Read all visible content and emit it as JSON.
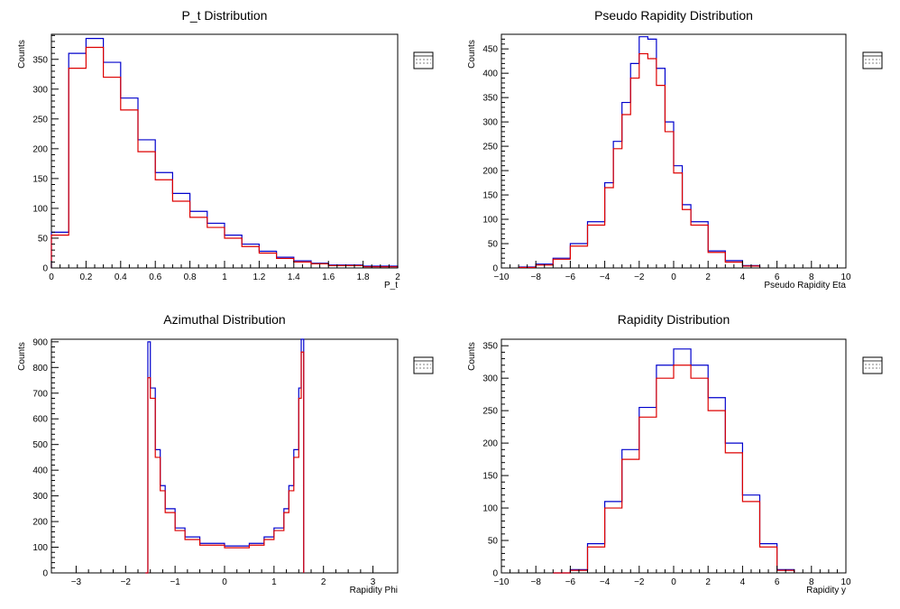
{
  "colors": {
    "series_blue": "#0000cc",
    "series_red": "#dd0000",
    "axis": "#000000",
    "background": "#ffffff"
  },
  "chart_data": [
    {
      "type": "histogram",
      "title": "P_t Distribution",
      "xlabel": "P_t",
      "ylabel": "Counts",
      "xlim": [
        0,
        2
      ],
      "ylim": [
        0,
        392
      ],
      "xticks": [
        0,
        0.2,
        0.4,
        0.6,
        0.8,
        1,
        1.2,
        1.4,
        1.6,
        1.8,
        2
      ],
      "xtick_labels": [
        "0",
        "0.2",
        "0.4",
        "0.6",
        "0.8",
        "1",
        "1.2",
        "1.4",
        "1.6",
        "1.8",
        "2"
      ],
      "yticks": [
        0,
        50,
        100,
        150,
        200,
        250,
        300,
        350
      ],
      "ytick_labels": [
        "0",
        "50",
        "100",
        "150",
        "200",
        "250",
        "300",
        "350"
      ],
      "grid": false,
      "stats_box": "right",
      "series": [
        {
          "color": "blue",
          "x": [
            0.0,
            0.1,
            0.2,
            0.3,
            0.4,
            0.5,
            0.6,
            0.7,
            0.8,
            0.9,
            1.0,
            1.1,
            1.2,
            1.3,
            1.4,
            1.5,
            1.6,
            1.8,
            2.0
          ],
          "y": [
            60,
            360,
            385,
            345,
            285,
            215,
            160,
            125,
            95,
            75,
            55,
            40,
            28,
            18,
            12,
            8,
            5,
            3,
            2
          ]
        },
        {
          "color": "red",
          "x": [
            0.0,
            0.1,
            0.2,
            0.3,
            0.4,
            0.5,
            0.6,
            0.7,
            0.8,
            0.9,
            1.0,
            1.1,
            1.2,
            1.3,
            1.4,
            1.5,
            1.6,
            1.8,
            2.0
          ],
          "y": [
            55,
            335,
            370,
            320,
            265,
            195,
            148,
            112,
            85,
            68,
            50,
            36,
            25,
            16,
            10,
            7,
            4,
            2,
            1
          ]
        }
      ]
    },
    {
      "type": "histogram",
      "title": "Pseudo Rapidity Distribution",
      "xlabel": "Pseudo Rapidity Eta",
      "ylabel": "Counts",
      "xlim": [
        -10,
        10
      ],
      "ylim": [
        0,
        480
      ],
      "xticks": [
        -10,
        -8,
        -6,
        -4,
        -2,
        0,
        2,
        4,
        6,
        8,
        10
      ],
      "xtick_labels": [
        "−10",
        "−8",
        "−6",
        "−4",
        "−2",
        "0",
        "2",
        "4",
        "6",
        "8",
        "10"
      ],
      "yticks": [
        0,
        50,
        100,
        150,
        200,
        250,
        300,
        350,
        400,
        450
      ],
      "ytick_labels": [
        "0",
        "50",
        "100",
        "150",
        "200",
        "250",
        "300",
        "350",
        "400",
        "450"
      ],
      "grid": false,
      "stats_box": "right",
      "series": [
        {
          "color": "blue",
          "x": [
            -9,
            -8,
            -7,
            -6,
            -5,
            -4,
            -3.5,
            -3,
            -2.5,
            -2,
            -1.5,
            -1,
            -0.5,
            0,
            0.5,
            1,
            2,
            3,
            4,
            5
          ],
          "y": [
            2,
            8,
            20,
            50,
            95,
            175,
            260,
            340,
            420,
            475,
            470,
            410,
            300,
            210,
            130,
            95,
            35,
            15,
            5,
            1
          ]
        },
        {
          "color": "red",
          "x": [
            -9,
            -8,
            -7,
            -6,
            -5,
            -4,
            -3.5,
            -3,
            -2.5,
            -2,
            -1.5,
            -1,
            -0.5,
            0,
            0.5,
            1,
            2,
            3,
            4,
            5
          ],
          "y": [
            1,
            6,
            18,
            45,
            88,
            165,
            245,
            315,
            390,
            440,
            430,
            375,
            280,
            195,
            120,
            88,
            32,
            12,
            4,
            1
          ]
        }
      ]
    },
    {
      "type": "histogram",
      "title": "Azimuthal Distribution",
      "xlabel": "Rapidity Phi",
      "ylabel": "Counts",
      "xlim": [
        -3.5,
        3.5
      ],
      "ylim": [
        0,
        910
      ],
      "xticks": [
        -3,
        -2,
        -1,
        0,
        1,
        2,
        3
      ],
      "xtick_labels": [
        "−3",
        "−2",
        "−1",
        "0",
        "1",
        "2",
        "3"
      ],
      "yticks": [
        0,
        100,
        200,
        300,
        400,
        500,
        600,
        700,
        800,
        900
      ],
      "ytick_labels": [
        "0",
        "100",
        "200",
        "300",
        "400",
        "500",
        "600",
        "700",
        "800",
        "900"
      ],
      "grid": false,
      "stats_box": "right",
      "series": [
        {
          "color": "blue",
          "x": [
            -1.6,
            -1.55,
            -1.5,
            -1.4,
            -1.3,
            -1.2,
            -1.0,
            -0.8,
            -0.5,
            0,
            0.5,
            0.8,
            1.0,
            1.2,
            1.3,
            1.4,
            1.5,
            1.55,
            1.6
          ],
          "y": [
            0,
            900,
            720,
            480,
            340,
            250,
            175,
            140,
            115,
            105,
            115,
            140,
            175,
            250,
            340,
            480,
            720,
            910,
            0
          ]
        },
        {
          "color": "red",
          "x": [
            -1.6,
            -1.55,
            -1.5,
            -1.4,
            -1.3,
            -1.2,
            -1.0,
            -0.8,
            -0.5,
            0,
            0.5,
            0.8,
            1.0,
            1.2,
            1.3,
            1.4,
            1.5,
            1.55,
            1.6
          ],
          "y": [
            0,
            760,
            680,
            450,
            320,
            235,
            165,
            130,
            108,
            98,
            108,
            130,
            165,
            235,
            320,
            450,
            680,
            860,
            0
          ]
        }
      ]
    },
    {
      "type": "histogram",
      "title": "Rapidity Distribution",
      "xlabel": "Rapidity y",
      "ylabel": "Counts",
      "xlim": [
        -10,
        10
      ],
      "ylim": [
        0,
        360
      ],
      "xticks": [
        -10,
        -8,
        -6,
        -4,
        -2,
        0,
        2,
        4,
        6,
        8,
        10
      ],
      "xtick_labels": [
        "−10",
        "−8",
        "−6",
        "−4",
        "−2",
        "0",
        "2",
        "4",
        "6",
        "8",
        "10"
      ],
      "yticks": [
        0,
        50,
        100,
        150,
        200,
        250,
        300,
        350
      ],
      "ytick_labels": [
        "0",
        "50",
        "100",
        "150",
        "200",
        "250",
        "300",
        "350"
      ],
      "grid": false,
      "stats_box": "right",
      "series": [
        {
          "color": "blue",
          "x": [
            -7,
            -6,
            -5,
            -4,
            -3,
            -2,
            -1,
            0,
            1,
            2,
            3,
            4,
            5,
            6,
            7
          ],
          "y": [
            0,
            5,
            45,
            110,
            190,
            255,
            320,
            345,
            320,
            270,
            200,
            120,
            45,
            5,
            0
          ]
        },
        {
          "color": "red",
          "x": [
            -7,
            -6,
            -5,
            -4,
            -3,
            -2,
            -1,
            0,
            1,
            2,
            3,
            4,
            5,
            6,
            7
          ],
          "y": [
            0,
            4,
            40,
            100,
            175,
            240,
            300,
            320,
            300,
            250,
            185,
            110,
            40,
            4,
            0
          ]
        }
      ]
    }
  ]
}
